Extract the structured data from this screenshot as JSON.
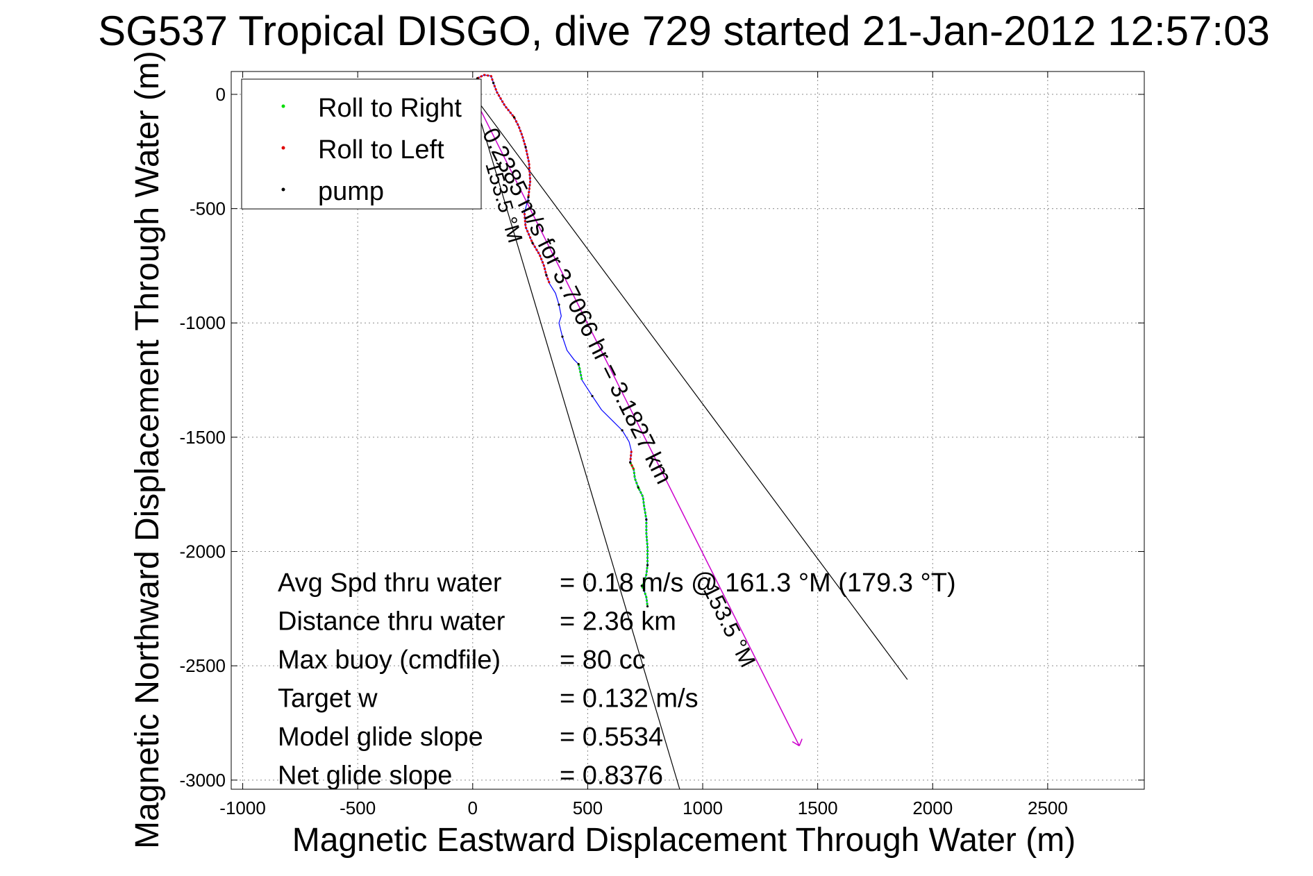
{
  "chart_data": {
    "type": "line",
    "title": "SG537 Tropical DISGO, dive 729 started 21-Jan-2012 12:57:03",
    "xlabel": "Magnetic Eastward Displacement Through Water (m)",
    "ylabel": "Magnetic Northward Displacement Through Water (m)",
    "xlim": [
      -1050,
      2920
    ],
    "ylim": [
      -3040,
      100
    ],
    "xticks": [
      -1000,
      -500,
      0,
      500,
      1000,
      1500,
      2000,
      2500
    ],
    "yticks": [
      0,
      -500,
      -1000,
      -1500,
      -2000,
      -2500,
      -3000
    ],
    "grid": true,
    "legend_position": "top-left",
    "legend": [
      {
        "label": "Roll to Right",
        "color": "#00dd00"
      },
      {
        "label": "Roll to Left",
        "color": "#e00000"
      },
      {
        "label": "pump",
        "color": "#000000"
      }
    ],
    "track": {
      "name": "glider track",
      "color": "#0000ff",
      "x": [
        20,
        50,
        80,
        90,
        105,
        140,
        180,
        200,
        215,
        230,
        245,
        250,
        242,
        225,
        230,
        260,
        290,
        310,
        320,
        335,
        360,
        375,
        385,
        375,
        390,
        410,
        440,
        460,
        465,
        475,
        520,
        560,
        610,
        650,
        680,
        690,
        685,
        700,
        705,
        720,
        740,
        745,
        755,
        755,
        760,
        760,
        755,
        745,
        735,
        745,
        755,
        760
      ],
      "y": [
        70,
        85,
        80,
        50,
        10,
        -50,
        -100,
        -140,
        -180,
        -230,
        -300,
        -380,
        -450,
        -520,
        -580,
        -650,
        -700,
        -750,
        -790,
        -830,
        -870,
        -920,
        -970,
        -1000,
        -1060,
        -1120,
        -1160,
        -1180,
        -1200,
        -1250,
        -1320,
        -1380,
        -1430,
        -1470,
        -1520,
        -1560,
        -1610,
        -1640,
        -1680,
        -1720,
        -1760,
        -1800,
        -1860,
        -1920,
        -1980,
        -2060,
        -2100,
        -2140,
        -2150,
        -2170,
        -2200,
        -2240
      ]
    },
    "right_roll_segments": [
      [
        36,
        51
      ],
      [
        27,
        29
      ]
    ],
    "left_roll_segments": [
      [
        0,
        12
      ],
      [
        13,
        19
      ],
      [
        35,
        37
      ]
    ],
    "current_vector": {
      "color": "#cc00cc",
      "x": [
        0,
        1420
      ],
      "y": [
        0,
        -2850
      ],
      "label": "0.2385 m/s for 3.7066 hr = 3.1827 km",
      "direction_label": "153.5 °M"
    },
    "cone_lines": [
      {
        "x": [
          0,
          1890
        ],
        "y": [
          0,
          -2560
        ]
      },
      {
        "x": [
          0,
          900
        ],
        "y": [
          0,
          -3040
        ]
      }
    ],
    "cone_label": "153.5 °M",
    "stats": [
      {
        "label": "Avg Spd thru water",
        "value": "=  0.18 m/s @ 161.3 °M (179.3 °T)"
      },
      {
        "label": "Distance thru water",
        "value": "=  2.36 km"
      },
      {
        "label": "Max buoy (cmdfile)",
        "value": "= 80 cc"
      },
      {
        "label": "Target w",
        "value": "= 0.132 m/s"
      },
      {
        "label": "Model glide slope",
        "value": "= 0.5534"
      },
      {
        "label": "Net glide slope",
        "value": "= 0.8376"
      }
    ]
  }
}
